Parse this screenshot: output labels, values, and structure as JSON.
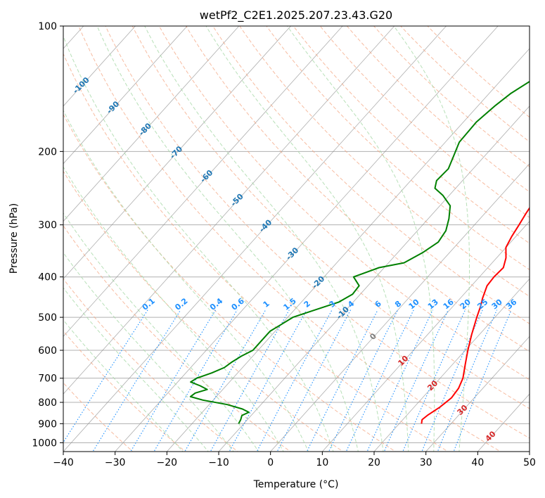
{
  "chart_data": {
    "type": "line",
    "subtype": "skew-t log-p",
    "title": "wetPf2_C2E1.2025.207.23.43.G20",
    "xlabel": "Temperature (°C)",
    "ylabel": "Pressure (hPa)",
    "xlim": [
      -40,
      50
    ],
    "ylim": [
      1050,
      100
    ],
    "y_scale": "log",
    "grid": true,
    "x_ticks": [
      -40,
      -30,
      -20,
      -10,
      0,
      10,
      20,
      30,
      40,
      50
    ],
    "y_ticks": [
      100,
      200,
      300,
      400,
      500,
      600,
      700,
      800,
      900,
      1000
    ],
    "series": [
      {
        "key": "temperature",
        "color": "#ff0000",
        "points": [
          [
            900,
            24.3
          ],
          [
            880,
            23.7
          ],
          [
            860,
            24.0
          ],
          [
            820,
            25.0
          ],
          [
            780,
            25.6
          ],
          [
            740,
            25.3
          ],
          [
            700,
            24.4
          ],
          [
            650,
            22.5
          ],
          [
            600,
            20.5
          ],
          [
            550,
            18.5
          ],
          [
            500,
            16.5
          ],
          [
            470,
            15.3
          ],
          [
            450,
            14.3
          ],
          [
            420,
            13.0
          ],
          [
            400,
            12.8
          ],
          [
            380,
            13.0
          ],
          [
            360,
            11.8
          ],
          [
            340,
            10.0
          ],
          [
            320,
            9.2
          ],
          [
            300,
            8.6
          ],
          [
            280,
            7.9
          ],
          [
            260,
            7.3
          ],
          [
            240,
            6.6
          ],
          [
            220,
            5.6
          ],
          [
            200,
            5.5
          ],
          [
            180,
            5.6
          ],
          [
            160,
            5.4
          ],
          [
            140,
            4.8
          ],
          [
            125,
            3.8
          ],
          [
            115,
            3.9
          ],
          [
            105,
            4.6
          ],
          [
            100,
            4.7
          ]
        ]
      },
      {
        "key": "dewpoint",
        "color": "#008000",
        "points": [
          [
            900,
            -11.0
          ],
          [
            880,
            -11.3
          ],
          [
            860,
            -11.8
          ],
          [
            845,
            -11.0
          ],
          [
            830,
            -12.8
          ],
          [
            810,
            -16.5
          ],
          [
            790,
            -22.0
          ],
          [
            775,
            -25.0
          ],
          [
            760,
            -24.7
          ],
          [
            745,
            -23.0
          ],
          [
            730,
            -25.0
          ],
          [
            715,
            -27.5
          ],
          [
            700,
            -27.0
          ],
          [
            680,
            -25.0
          ],
          [
            660,
            -23.5
          ],
          [
            640,
            -23.0
          ],
          [
            620,
            -22.2
          ],
          [
            600,
            -21.0
          ],
          [
            580,
            -21.0
          ],
          [
            560,
            -21.0
          ],
          [
            540,
            -21.0
          ],
          [
            520,
            -20.0
          ],
          [
            500,
            -19.0
          ],
          [
            480,
            -16.0
          ],
          [
            460,
            -12.8
          ],
          [
            440,
            -11.5
          ],
          [
            420,
            -11.7
          ],
          [
            400,
            -14.3
          ],
          [
            380,
            -11.0
          ],
          [
            370,
            -7.0
          ],
          [
            350,
            -5.2
          ],
          [
            330,
            -4.0
          ],
          [
            310,
            -4.5
          ],
          [
            290,
            -6.0
          ],
          [
            270,
            -8.0
          ],
          [
            255,
            -11.2
          ],
          [
            245,
            -14.0
          ],
          [
            235,
            -15.0
          ],
          [
            220,
            -14.8
          ],
          [
            205,
            -16.0
          ],
          [
            190,
            -17.3
          ],
          [
            170,
            -17.5
          ],
          [
            155,
            -16.7
          ],
          [
            145,
            -15.8
          ],
          [
            130,
            -13.2
          ],
          [
            120,
            -11.5
          ],
          [
            110,
            -9.0
          ],
          [
            105,
            -7.0
          ],
          [
            100,
            -5.0
          ]
        ]
      }
    ],
    "dry_adiabats": [
      -30,
      -20,
      -10,
      0,
      10,
      20,
      30,
      40,
      50,
      60,
      70,
      80,
      90,
      100,
      110,
      120,
      130,
      140,
      150,
      160,
      170
    ],
    "moist_adiabats": [
      -20,
      -15,
      -10,
      -5,
      0,
      5,
      10,
      15,
      20,
      25,
      30,
      35
    ],
    "isotherm_labels": [
      "-100",
      "-90",
      "-80",
      "-70",
      "-60",
      "-50",
      "-40",
      "-30",
      "-20",
      "-10",
      "0",
      "10",
      "20",
      "30",
      "40"
    ],
    "mixing_ratio_labels": [
      "0.1",
      "0.2",
      "0.4",
      "0.6",
      "1",
      "1.5",
      "2",
      "3",
      "4",
      "6",
      "8",
      "10",
      "13",
      "16",
      "20",
      "25",
      "30",
      "36"
    ],
    "colors": {
      "temperature": "#ff0000",
      "dewpoint": "#008000",
      "isotherm_label_cold": "#1f77b4",
      "isotherm_label_warm": "#d62728",
      "isotherm_label_zero": "#7f7f7f",
      "mixing_ratio": "#1e90ff",
      "dry_adiabat": "#f4a582",
      "moist_adiabat": "#a6d8a6",
      "skewed_isotherm": "#8c8c8c"
    }
  }
}
